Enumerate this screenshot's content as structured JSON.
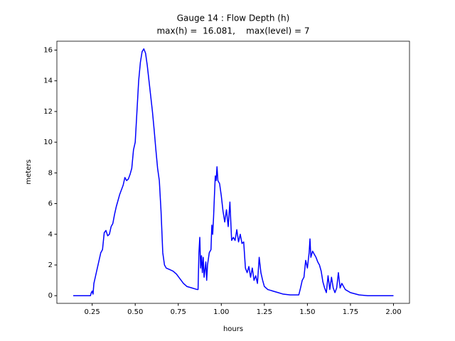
{
  "chart_data": {
    "type": "line",
    "title": [
      "Gauge 14 : Flow Depth (h)",
      "max(h) =  16.081,    max(level) = 7"
    ],
    "xlabel": "hours",
    "ylabel": "meters",
    "xlim": [
      0.045,
      2.093
    ],
    "ylim": [
      -0.5,
      16.58
    ],
    "xticks": [
      0.25,
      {
        "value": 0.5,
        "label": "0.50"
      },
      0.75,
      {
        "value": 1,
        "label": "1.00"
      },
      1.25,
      {
        "value": 1.5,
        "label": "1.50"
      },
      1.75,
      {
        "value": 2,
        "label": "2.00"
      }
    ],
    "yticks": [
      0,
      2,
      4,
      6,
      8,
      10,
      12,
      14,
      16
    ],
    "grid": false,
    "x": [
      0.14,
      0.24,
      0.245,
      0.25,
      0.255,
      0.26,
      0.27,
      0.28,
      0.29,
      0.3,
      0.31,
      0.32,
      0.33,
      0.34,
      0.35,
      0.36,
      0.37,
      0.38,
      0.39,
      0.4,
      0.41,
      0.42,
      0.43,
      0.44,
      0.45,
      0.46,
      0.47,
      0.48,
      0.49,
      0.5,
      0.51,
      0.52,
      0.53,
      0.54,
      0.55,
      0.56,
      0.57,
      0.58,
      0.59,
      0.6,
      0.61,
      0.62,
      0.63,
      0.64,
      0.65,
      0.66,
      0.67,
      0.68,
      0.7,
      0.72,
      0.74,
      0.76,
      0.78,
      0.8,
      0.83,
      0.86,
      0.865,
      0.87,
      0.875,
      0.88,
      0.885,
      0.89,
      0.895,
      0.9,
      0.91,
      0.915,
      0.92,
      0.93,
      0.94,
      0.945,
      0.95,
      0.955,
      0.96,
      0.965,
      0.97,
      0.975,
      0.98,
      0.99,
      1.0,
      1.01,
      1.02,
      1.03,
      1.04,
      1.05,
      1.06,
      1.07,
      1.08,
      1.09,
      1.1,
      1.11,
      1.12,
      1.13,
      1.14,
      1.15,
      1.16,
      1.17,
      1.18,
      1.19,
      1.2,
      1.21,
      1.22,
      1.23,
      1.24,
      1.25,
      1.27,
      1.3,
      1.33,
      1.36,
      1.4,
      1.45,
      1.46,
      1.47,
      1.48,
      1.49,
      1.5,
      1.51,
      1.515,
      1.52,
      1.53,
      1.54,
      1.55,
      1.56,
      1.57,
      1.58,
      1.59,
      1.6,
      1.61,
      1.62,
      1.63,
      1.64,
      1.65,
      1.66,
      1.67,
      1.68,
      1.69,
      1.7,
      1.72,
      1.75,
      1.8,
      1.85,
      2.0
    ],
    "series": [
      {
        "color": "#0000ff",
        "values": [
          0,
          0,
          0.2,
          0.3,
          0.1,
          0.8,
          1.3,
          1.8,
          2.3,
          2.8,
          3.0,
          4.1,
          4.25,
          3.9,
          4.0,
          4.5,
          4.7,
          5.3,
          5.8,
          6.2,
          6.6,
          6.9,
          7.2,
          7.7,
          7.5,
          7.6,
          7.9,
          8.3,
          9.5,
          10.0,
          12.0,
          14.0,
          15.2,
          15.9,
          16.08,
          15.8,
          15.0,
          14.0,
          13.0,
          12.0,
          10.8,
          9.5,
          8.3,
          7.5,
          5.5,
          2.8,
          2.0,
          1.8,
          1.7,
          1.6,
          1.4,
          1.1,
          0.8,
          0.6,
          0.5,
          0.4,
          0.4,
          2.8,
          3.8,
          1.8,
          2.6,
          1.5,
          2.5,
          1.2,
          2.2,
          1.0,
          2.0,
          2.8,
          3.0,
          4.6,
          4.0,
          5.1,
          6.5,
          7.8,
          7.5,
          8.4,
          7.5,
          7.3,
          6.5,
          5.5,
          4.8,
          5.6,
          4.5,
          6.1,
          3.6,
          3.8,
          3.6,
          4.3,
          3.5,
          4.0,
          3.4,
          3.5,
          1.8,
          1.5,
          1.9,
          1.2,
          1.8,
          1.0,
          1.3,
          0.8,
          2.5,
          1.5,
          1.0,
          0.6,
          0.4,
          0.3,
          0.2,
          0.1,
          0.05,
          0.05,
          0.5,
          1.0,
          1.2,
          2.3,
          1.8,
          2.8,
          3.7,
          2.5,
          2.9,
          2.7,
          2.5,
          2.2,
          2.0,
          1.6,
          0.9,
          0.5,
          0.2,
          1.3,
          0.4,
          1.2,
          0.5,
          0.2,
          0.5,
          1.5,
          0.5,
          0.8,
          0.4,
          0.2,
          0.05,
          0,
          0
        ]
      }
    ]
  }
}
